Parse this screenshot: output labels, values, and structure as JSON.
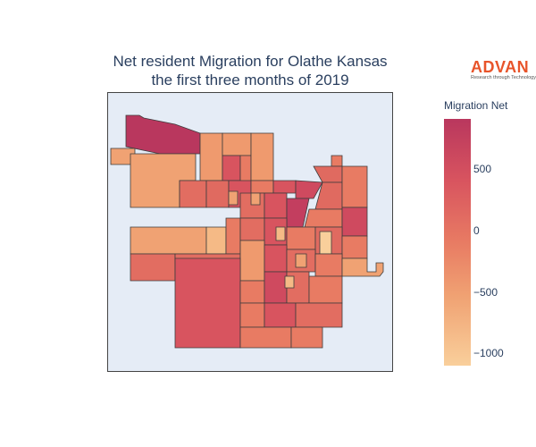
{
  "title_line1": "Net resident Migration for Olathe Kansas",
  "title_line2": "the first three months of 2019",
  "logo": {
    "name": "ADVAN",
    "tagline": "Research through Technology"
  },
  "colorbar": {
    "title": "Migration Net",
    "ticks": [
      "500",
      "0",
      "−500",
      "−1000"
    ],
    "colors": [
      "#b9375e",
      "#d8545f",
      "#e87b63",
      "#f0a273",
      "#f9cf9b"
    ]
  },
  "map": {
    "background": "#e5ecf6",
    "border_color": "#444444",
    "region_border": "#3d3d3d"
  }
}
